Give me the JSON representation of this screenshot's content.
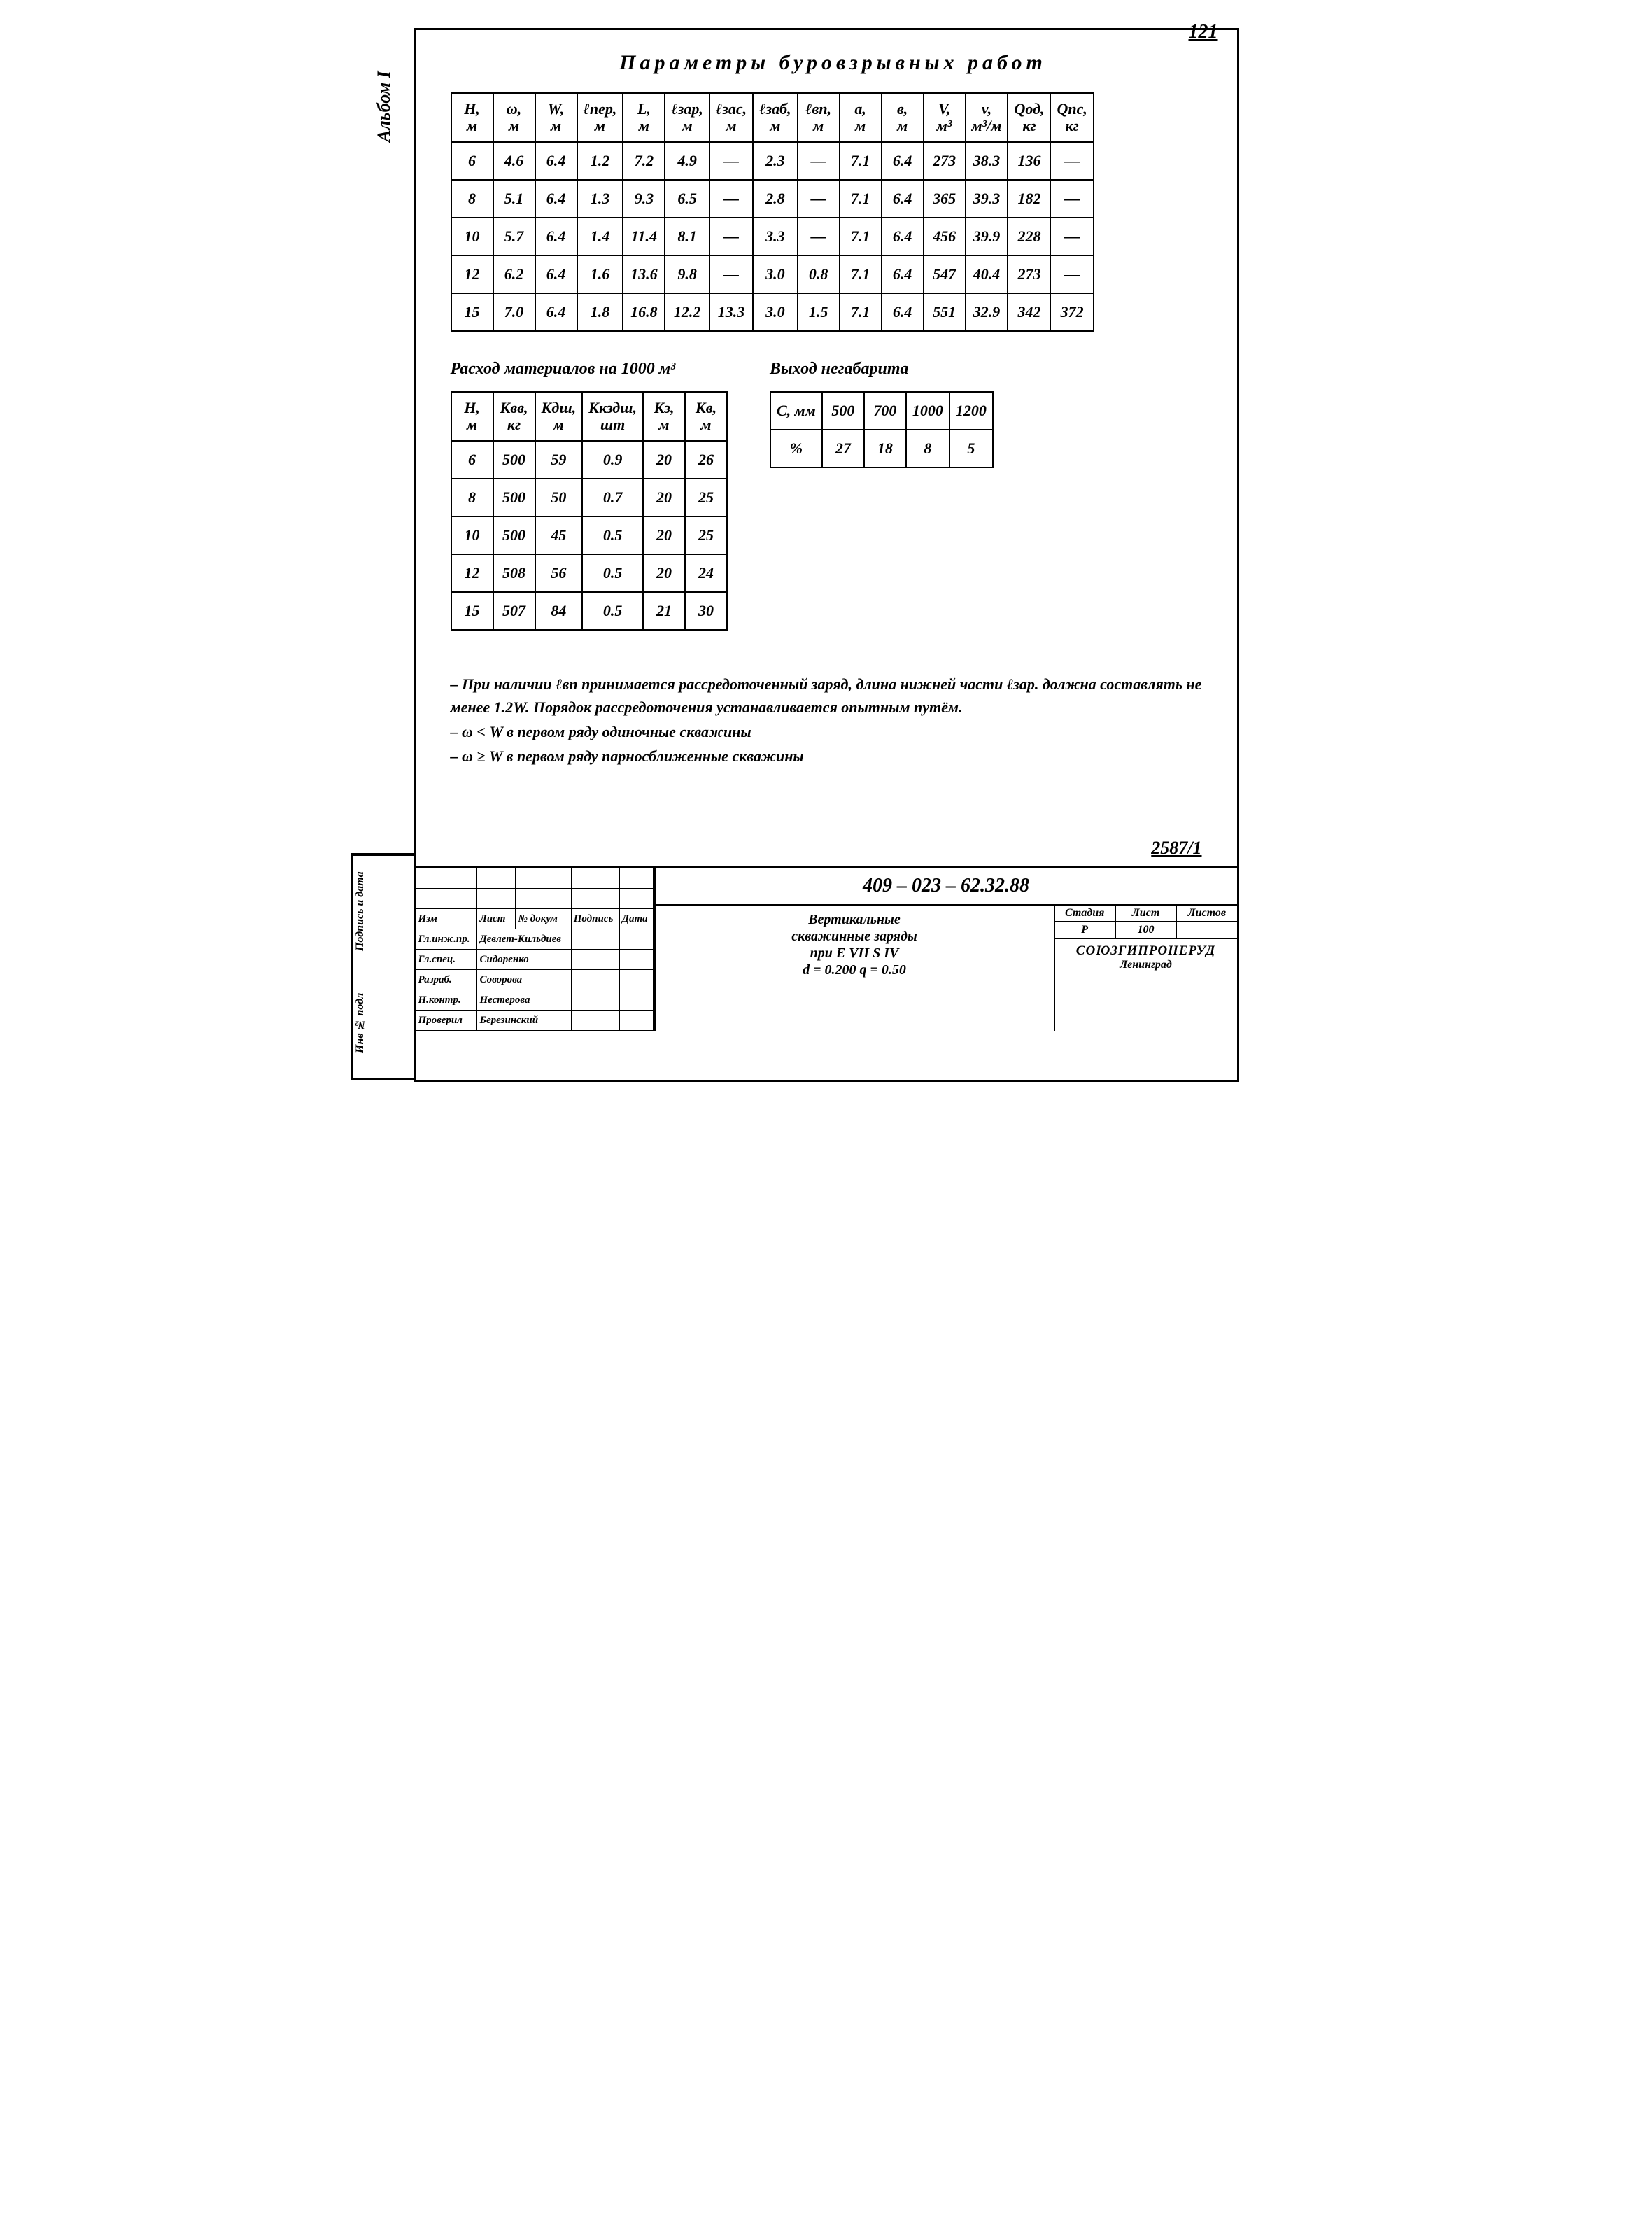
{
  "page_number": "121",
  "side_label": "Альбом I",
  "main_title": "Параметры буровзрывных работ",
  "table1": {
    "headers": [
      "H,\nм",
      "ω,\nм",
      "W,\nм",
      "ℓпер,\nм",
      "L,\nм",
      "ℓзар,\nм",
      "ℓзас,\nм",
      "ℓзаб,\nм",
      "ℓвп,\nм",
      "a,\nм",
      "в,\nм",
      "V,\nм³",
      "v,\nм³/м",
      "Qод,\nкг",
      "Qпс,\nкг"
    ],
    "rows": [
      [
        "6",
        "4.6",
        "6.4",
        "1.2",
        "7.2",
        "4.9",
        "—",
        "2.3",
        "—",
        "7.1",
        "6.4",
        "273",
        "38.3",
        "136",
        "—"
      ],
      [
        "8",
        "5.1",
        "6.4",
        "1.3",
        "9.3",
        "6.5",
        "—",
        "2.8",
        "—",
        "7.1",
        "6.4",
        "365",
        "39.3",
        "182",
        "—"
      ],
      [
        "10",
        "5.7",
        "6.4",
        "1.4",
        "11.4",
        "8.1",
        "—",
        "3.3",
        "—",
        "7.1",
        "6.4",
        "456",
        "39.9",
        "228",
        "—"
      ],
      [
        "12",
        "6.2",
        "6.4",
        "1.6",
        "13.6",
        "9.8",
        "—",
        "3.0",
        "0.8",
        "7.1",
        "6.4",
        "547",
        "40.4",
        "273",
        "—"
      ],
      [
        "15",
        "7.0",
        "6.4",
        "1.8",
        "16.8",
        "12.2",
        "13.3",
        "3.0",
        "1.5",
        "7.1",
        "6.4",
        "551",
        "32.9",
        "342",
        "372"
      ]
    ]
  },
  "table2_title": "Расход материалов на 1000 м³",
  "table2": {
    "headers": [
      "H,\nм",
      "Квв,\nкг",
      "Кдш,\nм",
      "Ккздш,\nшт",
      "Кз,\nм",
      "Кв,\nм"
    ],
    "rows": [
      [
        "6",
        "500",
        "59",
        "0.9",
        "20",
        "26"
      ],
      [
        "8",
        "500",
        "50",
        "0.7",
        "20",
        "25"
      ],
      [
        "10",
        "500",
        "45",
        "0.5",
        "20",
        "25"
      ],
      [
        "12",
        "508",
        "56",
        "0.5",
        "20",
        "24"
      ],
      [
        "15",
        "507",
        "84",
        "0.5",
        "21",
        "30"
      ]
    ]
  },
  "table3_title": "Выход негабарита",
  "table3": {
    "headers": [
      "С, мм",
      "500",
      "700",
      "1000",
      "1200"
    ],
    "row": [
      "%",
      "27",
      "18",
      "8",
      "5"
    ]
  },
  "notes": [
    "– При наличии ℓвп принимается рассредоточенный заряд, длина нижней части ℓзар. должна составлять не менее 1.2W. Порядок рассредоточения устанавливается опытным путём.",
    "– ω < W в первом ряду одиночные скважины",
    "– ω ≥ W в первом ряду парносближенные скважины"
  ],
  "ref_number": "2587/1",
  "titleblock": {
    "left_headers": [
      "Изм",
      "Лист",
      "№ докум",
      "Подпись",
      "Дата"
    ],
    "left_rows": [
      [
        "Гл.инж.пр.",
        "Девлет-Кильдиев",
        "",
        ""
      ],
      [
        "Гл.спец.",
        "Сидоренко",
        "",
        ""
      ],
      [
        "Разраб.",
        "Соворова",
        "",
        ""
      ],
      [
        "Н.контр.",
        "Нестерова",
        "",
        ""
      ],
      [
        "Проверил",
        "Березинский",
        "",
        ""
      ]
    ],
    "code": "409 – 023 – 62.32.88",
    "desc": "Вертикальные\nскважинные заряды\nпри E VII     S IV\nd = 0.200   q = 0.50",
    "meta_headers": [
      "Стадия",
      "Лист",
      "Листов"
    ],
    "meta_values": [
      "Р",
      "100",
      ""
    ],
    "org": "СОЮЗГИПРОНЕРУД",
    "org_city": "Ленинград"
  },
  "side_stamp": [
    "Инв № подл",
    "Подпись и дата"
  ]
}
